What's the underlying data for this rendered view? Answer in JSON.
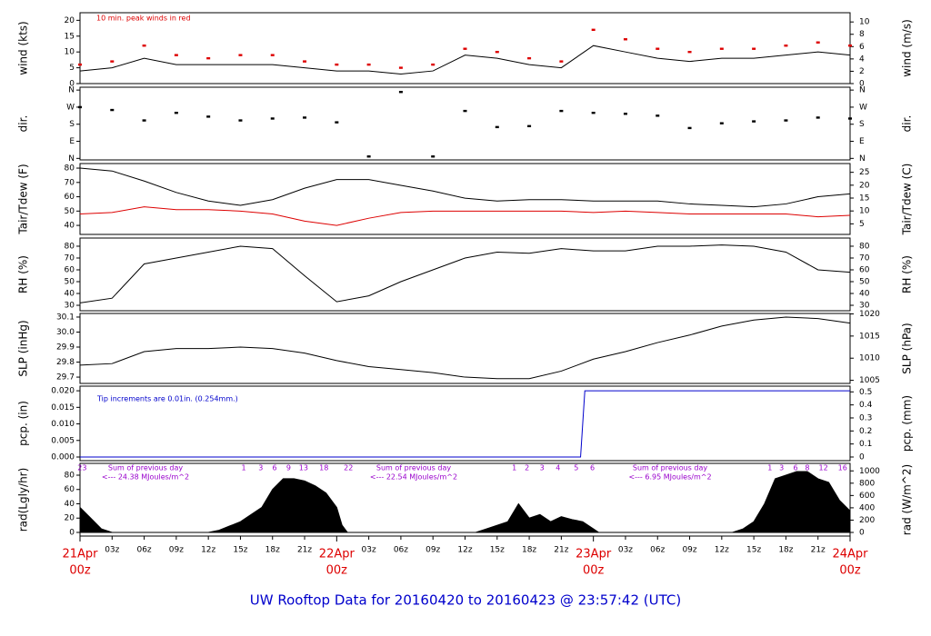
{
  "title": "UW Rooftop Data for 20160420  to  20160423 @ 23:57:42  (UTC)",
  "chart_data": [
    {
      "type": "line",
      "y_label": "wind (kts)",
      "y2_label": "wind (m/s)",
      "annotation": "10 min. peak winds in red",
      "xlim": [
        0,
        72
      ],
      "ylim": [
        0,
        22.4
      ],
      "yticks": [
        0,
        5,
        10,
        15,
        20
      ],
      "y2lim": [
        0,
        11.5
      ],
      "y2ticks": [
        0,
        2,
        4,
        6,
        8,
        10
      ],
      "x": [
        0,
        3,
        6,
        9,
        12,
        15,
        18,
        21,
        24,
        27,
        30,
        33,
        36,
        39,
        42,
        45,
        48,
        51,
        54,
        57,
        60,
        63,
        66,
        69,
        72
      ],
      "series": [
        {
          "color": "#000000",
          "values": [
            4,
            5,
            8,
            6,
            6,
            6,
            6,
            5,
            4,
            4,
            3,
            4,
            9,
            8,
            6,
            5,
            12,
            10,
            8,
            7,
            8,
            8,
            9,
            10,
            9
          ]
        },
        {
          "color": "#dd0000",
          "type": "scatter",
          "values": [
            6,
            7,
            12,
            9,
            8,
            9,
            9,
            7,
            6,
            6,
            5,
            6,
            11,
            10,
            8,
            7,
            17,
            14,
            11,
            10,
            11,
            11,
            12,
            13,
            12
          ]
        }
      ]
    },
    {
      "type": "scatter",
      "y_label": "dir.",
      "y2_label": "dir.",
      "xlim": [
        0,
        72
      ],
      "ylim": [
        -8,
        375
      ],
      "yticks": [
        {
          "value": 360,
          "label": "N"
        },
        {
          "value": 270,
          "label": "W"
        },
        {
          "value": 180,
          "label": "S"
        },
        {
          "value": 90,
          "label": "E"
        },
        {
          "value": 0,
          "label": "N"
        }
      ],
      "x": [
        0,
        3,
        6,
        9,
        12,
        15,
        18,
        21,
        24,
        27,
        30,
        33,
        36,
        39,
        42,
        45,
        48,
        51,
        54,
        57,
        60,
        63,
        66,
        69,
        72
      ],
      "series": [
        {
          "color": "#000000",
          "values": [
            270,
            255,
            200,
            240,
            220,
            200,
            210,
            215,
            190,
            10,
            350,
            10,
            250,
            165,
            170,
            250,
            240,
            235,
            225,
            160,
            185,
            195,
            200,
            215,
            210
          ]
        }
      ]
    },
    {
      "type": "line",
      "y_label": "Tair/Tdew (F)",
      "y2_label": "Tair/Tdew (C)",
      "xlim": [
        0,
        72
      ],
      "ylim": [
        33.7,
        83.2
      ],
      "yticks": [
        40,
        50,
        60,
        70,
        80
      ],
      "y2lim": [
        0.9,
        28.4
      ],
      "y2ticks": [
        5,
        10,
        15,
        20,
        25
      ],
      "x": [
        0,
        3,
        6,
        9,
        12,
        15,
        18,
        21,
        24,
        27,
        30,
        33,
        36,
        39,
        42,
        45,
        48,
        51,
        54,
        57,
        60,
        63,
        66,
        69,
        72
      ],
      "series": [
        {
          "color": "#000000",
          "values": [
            80,
            78,
            71,
            63,
            57,
            54,
            58,
            66,
            72,
            72,
            68,
            64,
            59,
            57,
            58,
            58,
            57,
            57,
            57,
            55,
            54,
            53,
            55,
            60,
            62
          ]
        },
        {
          "color": "#dd0000",
          "values": [
            48,
            49,
            53,
            51,
            51,
            50,
            48,
            43,
            40,
            45,
            49,
            50,
            50,
            50,
            50,
            50,
            49,
            50,
            49,
            48,
            48,
            48,
            48,
            46,
            47
          ]
        }
      ]
    },
    {
      "type": "line",
      "y_label": "RH (%)",
      "y2_label": "RH (%)",
      "xlim": [
        0,
        72
      ],
      "ylim": [
        25.4,
        86.9
      ],
      "yticks": [
        30,
        40,
        50,
        60,
        70,
        80
      ],
      "x": [
        0,
        3,
        6,
        9,
        12,
        15,
        18,
        21,
        24,
        27,
        30,
        33,
        36,
        39,
        42,
        45,
        48,
        51,
        54,
        57,
        60,
        63,
        66,
        69,
        72
      ],
      "series": [
        {
          "color": "#000000",
          "values": [
            32,
            36,
            65,
            70,
            75,
            80,
            78,
            55,
            33,
            38,
            50,
            60,
            70,
            75,
            74,
            78,
            76,
            76,
            80,
            80,
            81,
            80,
            75,
            60,
            58
          ]
        }
      ]
    },
    {
      "type": "line",
      "y_label": "SLP (inHg)",
      "y2_label": "SLP (hPa)",
      "xlim": [
        0,
        72
      ],
      "ylim": [
        29.658,
        30.124
      ],
      "yticks": [
        29.7,
        29.8,
        29.9,
        {
          "value": 30.0,
          "label": "30.0"
        },
        30.1
      ],
      "y2lim": [
        1004.3,
        1020.1
      ],
      "y2ticks": [
        1005,
        1010,
        1015,
        1020
      ],
      "x": [
        0,
        3,
        6,
        9,
        12,
        15,
        18,
        21,
        24,
        27,
        30,
        33,
        36,
        39,
        42,
        45,
        48,
        51,
        54,
        57,
        60,
        63,
        66,
        69,
        72
      ],
      "series": [
        {
          "color": "#000000",
          "values": [
            29.78,
            29.79,
            29.87,
            29.89,
            29.89,
            29.9,
            29.89,
            29.86,
            29.81,
            29.77,
            29.75,
            29.73,
            29.7,
            29.69,
            29.69,
            29.74,
            29.82,
            29.87,
            29.93,
            29.98,
            30.04,
            30.08,
            30.1,
            30.09,
            30.06
          ]
        }
      ]
    },
    {
      "type": "line",
      "y_label": "pcp. (in)",
      "y2_label": "pcp. (mm)",
      "annotation": "Tip increments are 0.01in. (0.254mm.)",
      "xlim": [
        0,
        72
      ],
      "ylim": [
        -0.0011,
        0.0214
      ],
      "yticks": [
        {
          "value": 0,
          "label": "0.000"
        },
        {
          "value": 0.005,
          "label": "0.005"
        },
        {
          "value": 0.01,
          "label": "0.010"
        },
        {
          "value": 0.015,
          "label": "0.015"
        },
        {
          "value": 0.02,
          "label": "0.020"
        }
      ],
      "y2lim": [
        -0.028,
        0.544
      ],
      "y2ticks": [
        0,
        0.1,
        0.2,
        0.3,
        0.4,
        0.5
      ],
      "x": [
        0,
        46.8,
        47.0,
        47.2,
        72
      ],
      "series": [
        {
          "color": "#0000cc",
          "values": [
            0,
            0,
            0.01,
            0.02,
            0.02
          ]
        }
      ]
    },
    {
      "type": "area",
      "y_label": "rad(Lgly/hr)",
      "y2_label": "rad (W/m^2)",
      "xlim": [
        0,
        72
      ],
      "ylim": [
        -5.1,
        96.5
      ],
      "yticks": [
        0,
        20,
        40,
        60,
        80
      ],
      "y2lim": [
        -59,
        1122
      ],
      "y2ticks": [
        0,
        200,
        400,
        600,
        800,
        1000
      ],
      "x": [
        0,
        1,
        2,
        3,
        12,
        13,
        15,
        17,
        18,
        19,
        20,
        21,
        22,
        23,
        24,
        24.5,
        25,
        37,
        38,
        40,
        41,
        42,
        43,
        44,
        45,
        46,
        47,
        48,
        48.5,
        61,
        62,
        63,
        64,
        65,
        66,
        67,
        68,
        69,
        70,
        71,
        72
      ],
      "series": [
        {
          "color": "#000000",
          "values": [
            35,
            20,
            5,
            0,
            0,
            3,
            15,
            35,
            60,
            75,
            75,
            72,
            65,
            55,
            35,
            10,
            0,
            0,
            5,
            15,
            40,
            20,
            25,
            15,
            22,
            18,
            15,
            5,
            0,
            0,
            5,
            15,
            40,
            75,
            80,
            85,
            85,
            75,
            70,
            45,
            30
          ]
        }
      ],
      "daily_sums": [
        {
          "label": "Sum of previous day",
          "value": "<--- 24.38 MJoules/m^2"
        },
        {
          "label": "Sum of previous day",
          "value": "<--- 22.54 MJoules/m^2"
        },
        {
          "label": "Sum of previous day",
          "value": "<--- 6.95 MJoules/m^2"
        }
      ],
      "hour_marks": [
        {
          "value": 0.2,
          "label": "23"
        },
        {
          "value": 15.3,
          "label": "1"
        },
        {
          "value": 16.9,
          "label": "3"
        },
        {
          "value": 18.2,
          "label": "6"
        },
        {
          "value": 19.5,
          "label": "9"
        },
        {
          "value": 20.9,
          "label": "13"
        },
        {
          "value": 22.8,
          "label": "18"
        },
        {
          "value": 25.1,
          "label": "22"
        },
        {
          "value": 40.6,
          "label": "1"
        },
        {
          "value": 41.8,
          "label": "2"
        },
        {
          "value": 43.2,
          "label": "3"
        },
        {
          "value": 44.7,
          "label": "4"
        },
        {
          "value": 46.4,
          "label": "5"
        },
        {
          "value": 47.9,
          "label": "6"
        },
        {
          "value": 64.5,
          "label": "1"
        },
        {
          "value": 65.6,
          "label": "3"
        },
        {
          "value": 66.9,
          "label": "6"
        },
        {
          "value": 68.0,
          "label": "8"
        },
        {
          "value": 69.5,
          "label": "12"
        },
        {
          "value": 71.3,
          "label": "16"
        }
      ],
      "xticks": [
        {
          "value": 3,
          "label": "03z"
        },
        {
          "value": 6,
          "label": "06z"
        },
        {
          "value": 9,
          "label": "09z"
        },
        {
          "value": 12,
          "label": "12z"
        },
        {
          "value": 15,
          "label": "15z"
        },
        {
          "value": 18,
          "label": "18z"
        },
        {
          "value": 21,
          "label": "21z"
        },
        {
          "value": 27,
          "label": "03z"
        },
        {
          "value": 30,
          "label": "06z"
        },
        {
          "value": 33,
          "label": "09z"
        },
        {
          "value": 36,
          "label": "12z"
        },
        {
          "value": 39,
          "label": "15z"
        },
        {
          "value": 42,
          "label": "18z"
        },
        {
          "value": 45,
          "label": "21z"
        },
        {
          "value": 51,
          "label": "03z"
        },
        {
          "value": 54,
          "label": "06z"
        },
        {
          "value": 57,
          "label": "09z"
        },
        {
          "value": 60,
          "label": "12z"
        },
        {
          "value": 63,
          "label": "15z"
        },
        {
          "value": 66,
          "label": "18z"
        },
        {
          "value": 69,
          "label": "21z"
        }
      ],
      "day_ticks": [
        {
          "value": 0,
          "label": "21Apr",
          "sublabel": "00z"
        },
        {
          "value": 24,
          "label": "22Apr",
          "sublabel": "00z"
        },
        {
          "value": 48,
          "label": "23Apr",
          "sublabel": "00z"
        },
        {
          "value": 72,
          "label": "24Apr",
          "sublabel": "00z"
        }
      ]
    }
  ]
}
